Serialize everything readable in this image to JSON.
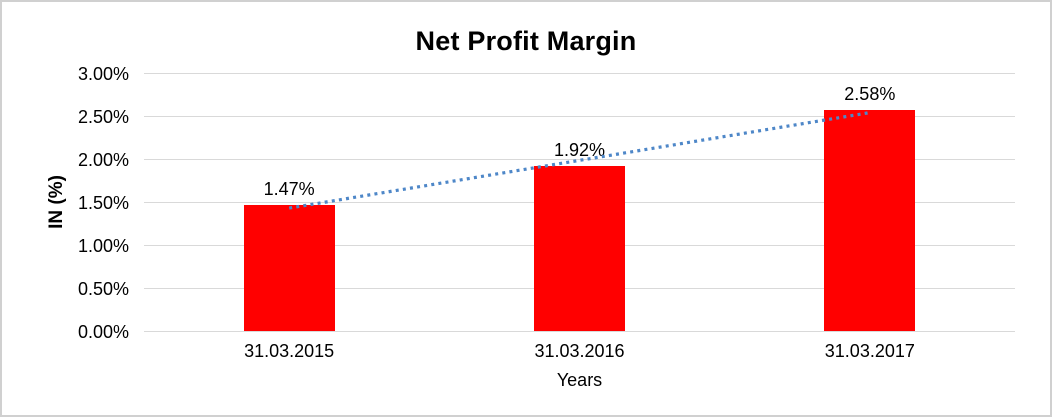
{
  "frame": {
    "background": "#FFFFFF",
    "border_color": "#D0D0D0"
  },
  "chart_data": {
    "type": "bar",
    "title": "Net Profit Margin",
    "xlabel": "Years",
    "ylabel": "IN (%)",
    "categories": [
      "31.03.2015",
      "31.03.2016",
      "31.03.2017"
    ],
    "values": [
      1.47,
      1.92,
      2.58
    ],
    "value_labels": [
      "1.47%",
      "1.92%",
      "2.58%"
    ],
    "ylim": [
      0,
      3
    ],
    "ytick_step": 0.5,
    "ytick_labels": [
      "0.00%",
      "0.50%",
      "1.00%",
      "1.50%",
      "2.00%",
      "2.50%",
      "3.00%"
    ],
    "grid": "horizontal",
    "legend": "none",
    "bar_color": "#FF0000",
    "gridline_color": "#D9D9D9",
    "trendline": {
      "type": "linear",
      "style": "dotted",
      "color": "#4E87C8"
    }
  }
}
